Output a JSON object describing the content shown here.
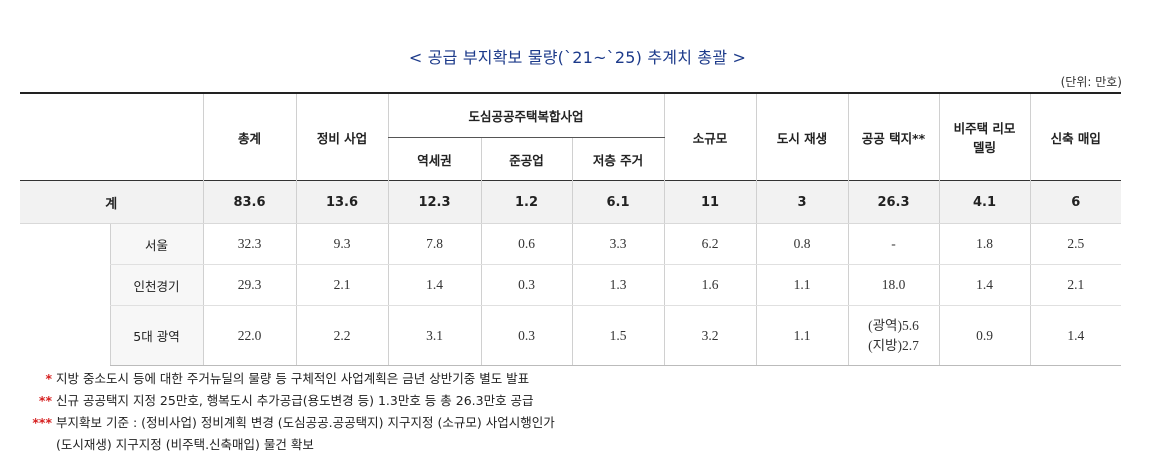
{
  "title": "< 공급 부지확보 물량(`21~`25) 추계치 총괄 >",
  "unit": "(단위: 만호)",
  "headers": {
    "total": "총계",
    "redevelopment": "정비 사업",
    "dosim_group": "도심공공주택복합사업",
    "station_area": "역세권",
    "semi_industrial": "준공업",
    "low_rise": "저층 주거",
    "small_scale": "소규모",
    "urban_regen": "도시 재생",
    "public_land": "공공 택지**",
    "non_housing_remodel": "비주택 리모델링",
    "new_purchase": "신축 매입"
  },
  "total_row": {
    "label": "계",
    "values": [
      "83.6",
      "13.6",
      "12.3",
      "1.2",
      "6.1",
      "11",
      "3",
      "26.3",
      "4.1",
      "6"
    ]
  },
  "rows": [
    {
      "label": "서울",
      "values": [
        "32.3",
        "9.3",
        "7.8",
        "0.6",
        "3.3",
        "6.2",
        "0.8",
        "-",
        "1.8",
        "2.5"
      ]
    },
    {
      "label": "인천경기",
      "values": [
        "29.3",
        "2.1",
        "1.4",
        "0.3",
        "1.3",
        "1.6",
        "1.1",
        "18.0",
        "1.4",
        "2.1"
      ]
    },
    {
      "label": "5대 광역",
      "values": [
        "22.0",
        "2.2",
        "3.1",
        "0.3",
        "1.5",
        "3.2",
        "1.1",
        "",
        "0.9",
        "1.4"
      ],
      "public_land_lines": [
        "(광역)5.6",
        "(지방)2.7"
      ]
    }
  ],
  "notes": [
    {
      "mark": "*",
      "text": "지방 중소도시 등에 대한 주거뉴딜의 물량 등 구체적인 사업계획은 금년 상반기중 별도 발표"
    },
    {
      "mark": "**",
      "text": "신규 공공택지 지정 25만호, 행복도시 추가공급(용도변경 등) 1.3만호 등 총 26.3만호 공급"
    },
    {
      "mark": "***",
      "text": "부지확보 기준 : (정비사업) 정비계획 변경 (도심공공.공공택지) 지구지정 (소규모) 사업시행인가"
    }
  ],
  "note_continuation": "(도시재생) 지구지정 (비주택.신축매입) 물건 확보",
  "colors": {
    "title": "#1c3a8a",
    "note_mark": "#d62020",
    "total_row_bg": "#f2f2f2"
  }
}
